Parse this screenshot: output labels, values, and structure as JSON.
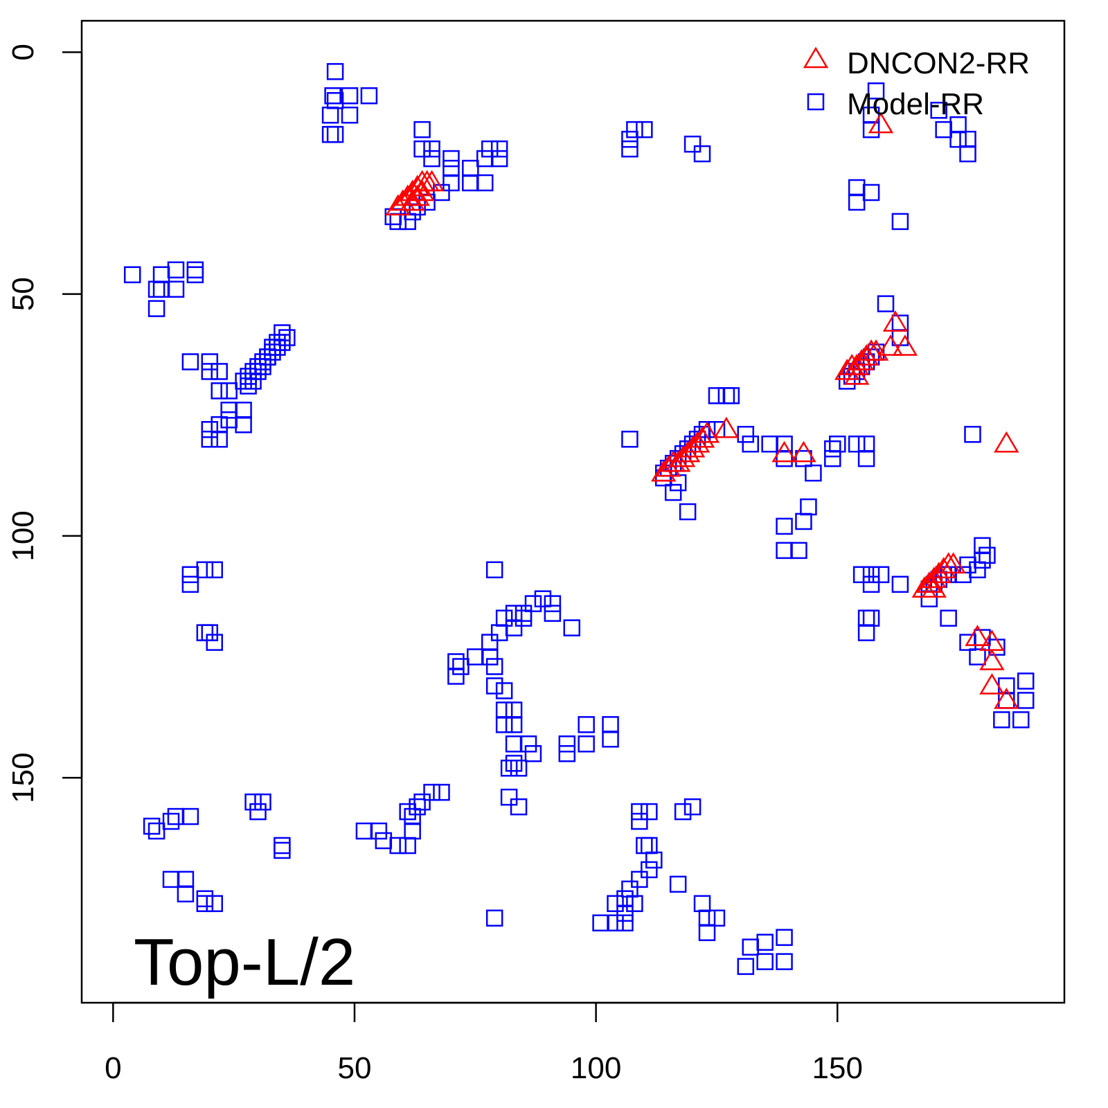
{
  "chart_data": {
    "type": "scatter",
    "title": "",
    "xlabel": "",
    "ylabel": "",
    "xlim": [
      -6.5,
      197
    ],
    "ylim": [
      196.5,
      -6.5
    ],
    "x_ticks": [
      0,
      50,
      100,
      150
    ],
    "y_ticks": [
      0,
      50,
      100,
      150
    ],
    "x_tick_labels": [
      "0",
      "50",
      "100",
      "150"
    ],
    "y_tick_labels": [
      "0",
      "50",
      "100",
      "150"
    ],
    "annotation": "Top-L/2",
    "legend_position": "top-right",
    "series": [
      {
        "name": "DNCON2-RR",
        "marker": "triangle",
        "color": "#FF0000",
        "points": [
          [
            59,
            32
          ],
          [
            60,
            31
          ],
          [
            61,
            30
          ],
          [
            62,
            29
          ],
          [
            63,
            28
          ],
          [
            64,
            27
          ],
          [
            65,
            27
          ],
          [
            66,
            27
          ],
          [
            62,
            31
          ],
          [
            63,
            30
          ],
          [
            64,
            29
          ],
          [
            159,
            15
          ],
          [
            162,
            56
          ],
          [
            164,
            61
          ],
          [
            161,
            61
          ],
          [
            185,
            81
          ],
          [
            127,
            78
          ],
          [
            139,
            83
          ],
          [
            143,
            83
          ],
          [
            114,
            87
          ],
          [
            115,
            86
          ],
          [
            116,
            85
          ],
          [
            117,
            85
          ],
          [
            118,
            84
          ],
          [
            119,
            83
          ],
          [
            120,
            82
          ],
          [
            121,
            81
          ],
          [
            122,
            80
          ],
          [
            123,
            79
          ],
          [
            152,
            66
          ],
          [
            153,
            65
          ],
          [
            154,
            65
          ],
          [
            155,
            64
          ],
          [
            156,
            63
          ],
          [
            157,
            62
          ],
          [
            158,
            62
          ],
          [
            154,
            67
          ],
          [
            168,
            111
          ],
          [
            169,
            110
          ],
          [
            170,
            109
          ],
          [
            171,
            108
          ],
          [
            172,
            107
          ],
          [
            173,
            106
          ],
          [
            174,
            106
          ],
          [
            170,
            111
          ],
          [
            179,
            121
          ],
          [
            182,
            122
          ],
          [
            182,
            126
          ],
          [
            182,
            131
          ],
          [
            185,
            134
          ]
        ]
      },
      {
        "name": "Model-RR",
        "marker": "square",
        "color": "#0000FF",
        "points": [
          [
            46,
            4
          ],
          [
            45.5,
            9
          ],
          [
            46,
            10
          ],
          [
            49,
            9
          ],
          [
            49,
            13
          ],
          [
            53,
            9
          ],
          [
            45,
            13
          ],
          [
            45,
            17
          ],
          [
            46,
            17
          ],
          [
            64,
            16
          ],
          [
            64,
            20
          ],
          [
            66,
            20
          ],
          [
            66,
            22
          ],
          [
            70,
            22
          ],
          [
            70,
            24
          ],
          [
            70,
            27
          ],
          [
            74,
            24
          ],
          [
            74,
            27
          ],
          [
            77,
            27
          ],
          [
            77,
            22
          ],
          [
            78,
            20
          ],
          [
            80,
            20
          ],
          [
            80,
            22
          ],
          [
            68,
            29
          ],
          [
            65,
            31
          ],
          [
            63,
            32
          ],
          [
            61,
            35
          ],
          [
            59,
            35
          ],
          [
            58,
            34
          ],
          [
            62,
            33
          ],
          [
            4,
            46
          ],
          [
            10,
            46
          ],
          [
            9,
            49
          ],
          [
            9,
            53
          ],
          [
            13,
            45
          ],
          [
            13,
            49
          ],
          [
            17,
            45
          ],
          [
            17,
            46
          ],
          [
            10,
            49
          ],
          [
            16,
            64
          ],
          [
            20,
            64
          ],
          [
            20,
            66
          ],
          [
            22,
            66
          ],
          [
            22,
            70
          ],
          [
            24,
            70
          ],
          [
            24,
            74
          ],
          [
            24,
            76
          ],
          [
            27,
            74
          ],
          [
            27,
            77
          ],
          [
            22,
            77
          ],
          [
            20,
            78
          ],
          [
            20,
            80
          ],
          [
            22,
            80
          ],
          [
            27,
            68
          ],
          [
            28,
            67
          ],
          [
            29,
            66
          ],
          [
            30,
            65
          ],
          [
            31,
            64
          ],
          [
            32,
            63
          ],
          [
            33,
            62
          ],
          [
            34,
            61
          ],
          [
            35,
            60
          ],
          [
            36,
            59
          ],
          [
            28,
            69
          ],
          [
            29,
            68
          ],
          [
            30,
            66
          ],
          [
            31,
            65
          ],
          [
            32,
            63
          ],
          [
            33,
            61
          ],
          [
            34,
            60
          ],
          [
            35,
            58
          ],
          [
            16,
            108
          ],
          [
            16,
            110
          ],
          [
            19,
            107
          ],
          [
            21,
            107
          ],
          [
            19,
            120
          ],
          [
            21,
            122
          ],
          [
            20,
            120
          ],
          [
            8,
            160
          ],
          [
            9,
            161
          ],
          [
            12,
            159
          ],
          [
            13,
            158
          ],
          [
            16,
            158
          ],
          [
            12,
            171
          ],
          [
            15,
            171
          ],
          [
            15,
            174
          ],
          [
            19,
            175
          ],
          [
            19,
            176
          ],
          [
            21,
            176
          ],
          [
            29,
            155
          ],
          [
            30,
            157
          ],
          [
            31,
            155
          ],
          [
            35,
            164
          ],
          [
            35,
            165
          ],
          [
            52,
            161
          ],
          [
            55,
            161
          ],
          [
            56,
            163
          ],
          [
            59,
            164
          ],
          [
            61,
            164
          ],
          [
            62,
            161
          ],
          [
            61,
            157
          ],
          [
            63,
            156
          ],
          [
            66,
            153
          ],
          [
            68,
            153
          ],
          [
            64,
            155
          ],
          [
            62,
            158
          ],
          [
            71,
            126
          ],
          [
            71,
            129
          ],
          [
            72,
            127
          ],
          [
            75,
            125
          ],
          [
            78,
            125
          ],
          [
            79,
            127
          ],
          [
            78,
            122
          ],
          [
            80,
            120
          ],
          [
            81,
            117
          ],
          [
            83,
            116
          ],
          [
            85,
            116
          ],
          [
            87,
            114
          ],
          [
            89,
            113
          ],
          [
            91,
            114
          ],
          [
            91,
            116
          ],
          [
            95,
            119
          ],
          [
            83,
            119
          ],
          [
            85,
            117
          ],
          [
            79,
            107
          ],
          [
            79,
            131
          ],
          [
            81,
            132
          ],
          [
            81,
            136
          ],
          [
            83,
            136
          ],
          [
            83,
            139
          ],
          [
            83,
            143
          ],
          [
            86,
            143
          ],
          [
            87,
            145
          ],
          [
            83,
            147
          ],
          [
            84,
            148
          ],
          [
            82,
            148
          ],
          [
            82,
            154
          ],
          [
            84,
            156
          ],
          [
            81,
            139
          ],
          [
            94,
            143
          ],
          [
            94,
            145
          ],
          [
            98,
            139
          ],
          [
            98,
            143
          ],
          [
            103,
            139
          ],
          [
            103,
            142
          ],
          [
            101,
            180
          ],
          [
            104,
            180
          ],
          [
            106,
            180
          ],
          [
            104,
            176
          ],
          [
            106,
            175
          ],
          [
            107,
            173
          ],
          [
            109,
            171
          ],
          [
            111,
            169
          ],
          [
            112,
            167
          ],
          [
            110,
            164
          ],
          [
            111,
            164
          ],
          [
            109,
            157
          ],
          [
            111,
            157
          ],
          [
            109,
            159
          ],
          [
            117,
            172
          ],
          [
            118,
            157
          ],
          [
            120,
            156
          ],
          [
            122,
            176
          ],
          [
            123,
            179
          ],
          [
            123,
            182
          ],
          [
            125,
            179
          ],
          [
            131,
            189
          ],
          [
            132,
            185
          ],
          [
            135,
            188
          ],
          [
            135,
            184
          ],
          [
            139,
            188
          ],
          [
            139,
            183
          ],
          [
            79,
            179
          ],
          [
            106,
            178
          ],
          [
            108,
            176
          ],
          [
            107,
            20
          ],
          [
            107,
            18
          ],
          [
            108,
            16
          ],
          [
            110,
            16
          ],
          [
            120,
            19
          ],
          [
            122,
            21
          ],
          [
            158,
            8
          ],
          [
            157,
            13
          ],
          [
            157,
            16
          ],
          [
            171,
            12
          ],
          [
            172,
            16
          ],
          [
            175,
            15
          ],
          [
            175,
            18
          ],
          [
            177,
            21
          ],
          [
            177,
            18
          ],
          [
            154,
            28
          ],
          [
            157,
            29
          ],
          [
            154,
            31
          ],
          [
            163,
            35
          ],
          [
            160,
            52
          ],
          [
            163,
            56
          ],
          [
            163,
            59
          ],
          [
            152,
            68
          ],
          [
            107,
            80
          ],
          [
            178,
            79
          ],
          [
            125,
            71
          ],
          [
            127,
            71
          ],
          [
            128,
            71
          ],
          [
            131,
            79
          ],
          [
            132,
            81
          ],
          [
            136,
            81
          ],
          [
            139,
            81
          ],
          [
            139,
            84
          ],
          [
            143,
            84
          ],
          [
            145,
            87
          ],
          [
            149,
            82
          ],
          [
            149,
            84
          ],
          [
            150,
            81
          ],
          [
            154,
            81
          ],
          [
            156,
            81
          ],
          [
            156,
            84
          ],
          [
            144,
            94
          ],
          [
            143,
            97
          ],
          [
            139,
            98
          ],
          [
            139,
            103
          ],
          [
            142,
            103
          ],
          [
            123,
            78
          ],
          [
            125,
            78
          ],
          [
            114,
            88
          ],
          [
            116,
            91
          ],
          [
            119,
            95
          ],
          [
            117,
            89
          ],
          [
            114,
            87
          ],
          [
            115,
            86
          ],
          [
            116,
            85
          ],
          [
            117,
            84
          ],
          [
            118,
            83
          ],
          [
            119,
            82
          ],
          [
            120,
            81
          ],
          [
            121,
            80
          ],
          [
            122,
            79
          ],
          [
            153,
            67
          ],
          [
            154,
            66
          ],
          [
            155,
            65
          ],
          [
            156,
            64
          ],
          [
            157,
            63
          ],
          [
            158,
            62
          ],
          [
            155,
            108
          ],
          [
            157,
            108
          ],
          [
            159,
            108
          ],
          [
            157,
            110
          ],
          [
            163,
            110
          ],
          [
            156,
            117
          ],
          [
            156,
            120
          ],
          [
            157,
            117
          ],
          [
            173,
            117
          ],
          [
            180,
            102
          ],
          [
            180,
            105
          ],
          [
            179,
            107
          ],
          [
            177,
            106
          ],
          [
            176,
            108
          ],
          [
            173,
            108
          ],
          [
            169,
            111
          ],
          [
            169,
            113
          ],
          [
            170,
            110
          ],
          [
            171,
            109
          ],
          [
            172,
            108
          ],
          [
            177,
            122
          ],
          [
            180,
            121
          ],
          [
            179,
            125
          ],
          [
            183,
            123
          ],
          [
            185,
            131
          ],
          [
            189,
            130
          ],
          [
            189,
            134
          ],
          [
            185,
            134
          ],
          [
            184,
            138
          ],
          [
            188,
            138
          ],
          [
            181,
            104
          ]
        ]
      }
    ]
  }
}
